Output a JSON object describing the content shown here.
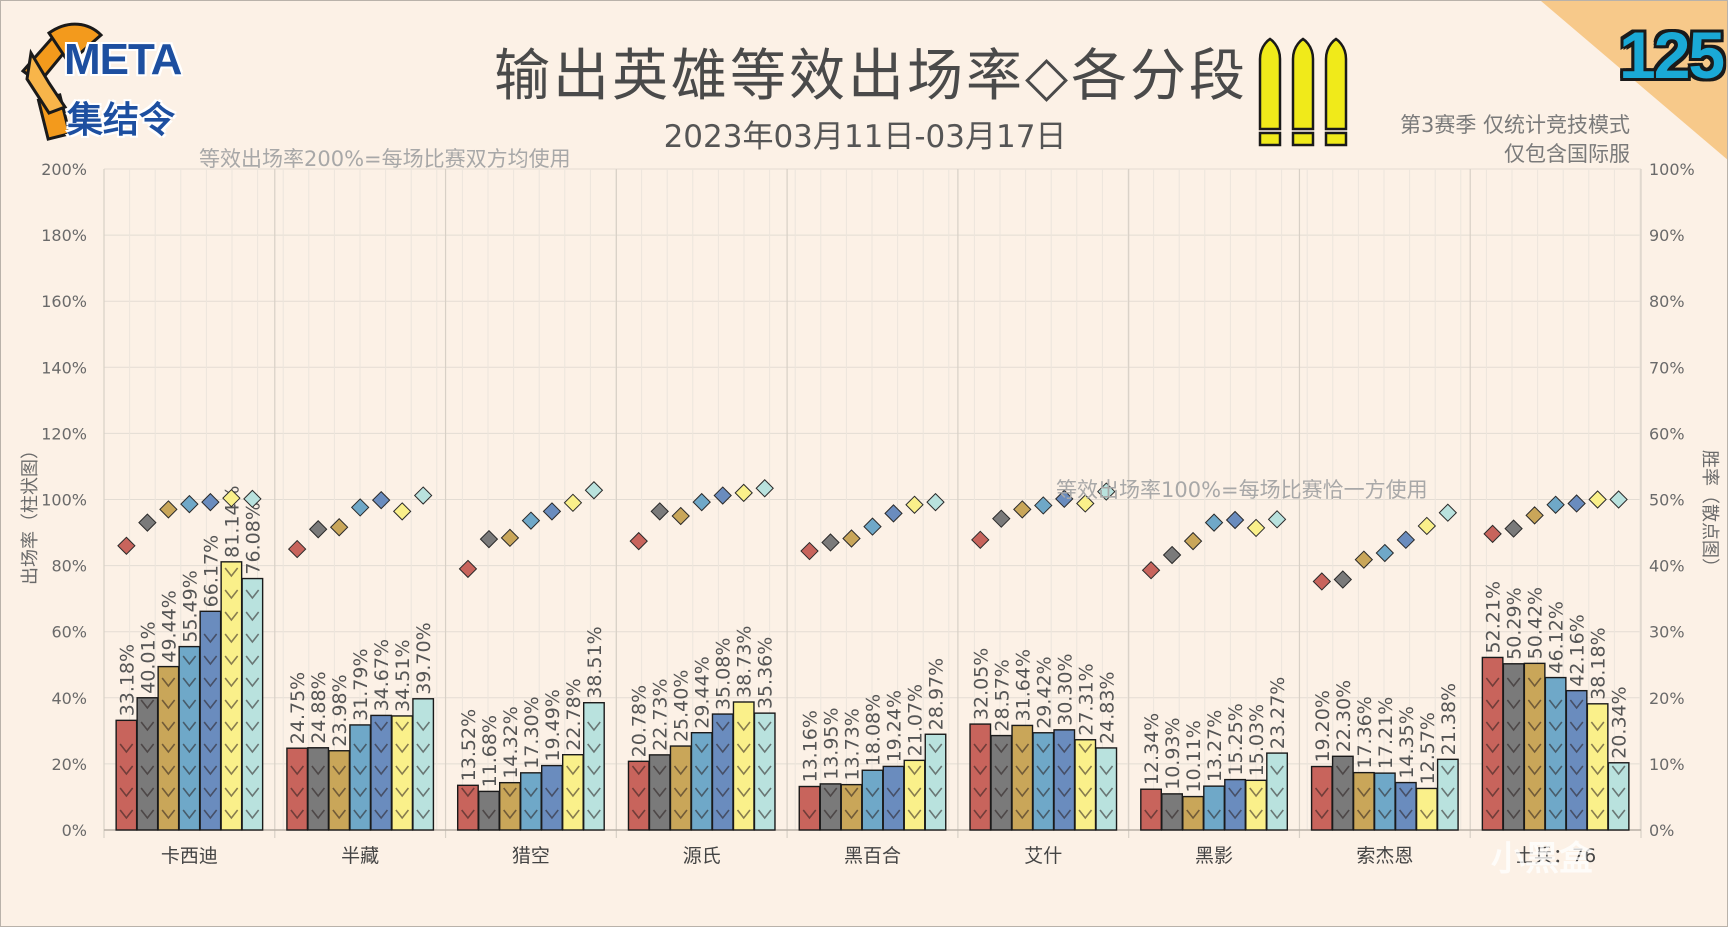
{
  "header": {
    "title": "输出英雄等效出场率◇各分段",
    "date_range": "2023年03月11日-03月17日",
    "season_note": "第3赛季 仅统计竞技模式",
    "region_note": "仅包含国际服",
    "episode": "125",
    "logo_text": "META",
    "logo_subtext": "集结令"
  },
  "notes": {
    "top": "等效出场率200%=每场比赛双方均使用",
    "mid": "等效出场率100%=每场比赛恰一方使用"
  },
  "watermark": "小黑盒",
  "colors": {
    "tiers": [
      "#c8645c",
      "#7a7a7a",
      "#c9a659",
      "#6fa8c8",
      "#6a8cbe",
      "#faf08a",
      "#b9e2de"
    ],
    "diamonds": [
      "#c8645c",
      "#7a7a7a",
      "#c9a659",
      "#6fa8c8",
      "#6a8cbe",
      "#faf08a",
      "#b9e2de"
    ],
    "bullet": "#f0ea1a",
    "corner": "#f7c98a"
  },
  "chart_data": {
    "type": "bar",
    "categories": [
      "卡西迪",
      "半藏",
      "猎空",
      "源氏",
      "黑百合",
      "艾什",
      "黑影",
      "索杰恩",
      "士兵：76"
    ],
    "y_left_label": "出场率（柱状图）",
    "y_right_label": "胜率（散点图）",
    "y_left_ticks": [
      "0%",
      "20%",
      "40%",
      "60%",
      "80%",
      "100%",
      "120%",
      "140%",
      "160%",
      "180%",
      "200%"
    ],
    "y_right_ticks": [
      "0%",
      "10%",
      "20%",
      "30%",
      "40%",
      "50%",
      "60%",
      "70%",
      "80%",
      "90%",
      "100%"
    ],
    "ylim_left": [
      0,
      200
    ],
    "ylim_right": [
      0,
      100
    ],
    "grid": true,
    "pick_rate": [
      [
        33.18,
        40.01,
        49.44,
        55.49,
        66.17,
        81.14,
        76.08
      ],
      [
        24.75,
        24.88,
        23.98,
        31.79,
        34.67,
        34.51,
        39.7
      ],
      [
        13.52,
        11.68,
        14.32,
        17.3,
        19.49,
        22.78,
        38.51
      ],
      [
        20.78,
        22.73,
        25.4,
        29.44,
        35.08,
        38.73,
        35.36
      ],
      [
        13.16,
        13.95,
        13.73,
        18.08,
        19.24,
        21.07,
        28.97
      ],
      [
        32.05,
        28.57,
        31.64,
        29.42,
        30.3,
        27.31,
        24.83
      ],
      [
        12.34,
        10.93,
        10.11,
        13.27,
        15.25,
        15.03,
        23.27
      ],
      [
        19.2,
        22.3,
        17.36,
        17.21,
        14.35,
        12.57,
        21.38
      ],
      [
        52.21,
        50.29,
        50.42,
        46.12,
        42.16,
        38.18,
        20.34
      ]
    ],
    "pick_rate_labels": [
      [
        "33.18%",
        "40.01%",
        "49.44%",
        "55.49%",
        "66.17%",
        "81.14%",
        "76.08%"
      ],
      [
        "24.75%",
        "24.88%",
        "23.98%",
        "31.79%",
        "34.67%",
        "34.51%",
        "39.70%"
      ],
      [
        "13.52%",
        "11.68%",
        "14.32%",
        "17.30%",
        "19.49%",
        "22.78%",
        "38.51%"
      ],
      [
        "20.78%",
        "22.73%",
        "25.40%",
        "29.44%",
        "35.08%",
        "38.73%",
        "35.36%"
      ],
      [
        "13.16%",
        "13.95%",
        "13.73%",
        "18.08%",
        "19.24%",
        "21.07%",
        "28.97%"
      ],
      [
        "32.05%",
        "28.57%",
        "31.64%",
        "29.42%",
        "30.30%",
        "27.31%",
        "24.83%"
      ],
      [
        "12.34%",
        "10.93%",
        "10.11%",
        "13.27%",
        "15.25%",
        "15.03%",
        "23.27%"
      ],
      [
        "19.20%",
        "22.30%",
        "17.36%",
        "17.21%",
        "14.35%",
        "12.57%",
        "21.38%"
      ],
      [
        "52.21%",
        "50.29%",
        "50.42%",
        "46.12%",
        "42.16%",
        "38.18%",
        "20.34%"
      ]
    ],
    "win_rate": [
      [
        43.0,
        46.5,
        48.5,
        49.3,
        49.6,
        50.2,
        50.1
      ],
      [
        42.5,
        45.5,
        45.8,
        48.8,
        49.9,
        48.2,
        50.6
      ],
      [
        39.5,
        44.0,
        44.2,
        46.8,
        48.2,
        49.5,
        51.4
      ],
      [
        43.7,
        48.2,
        47.5,
        49.6,
        50.6,
        51.0,
        51.7
      ],
      [
        42.2,
        43.5,
        44.1,
        45.9,
        47.9,
        49.2,
        49.6
      ],
      [
        43.9,
        47.1,
        48.5,
        49.1,
        50.1,
        49.4,
        51.2
      ],
      [
        39.3,
        41.6,
        43.7,
        46.5,
        46.9,
        45.7,
        47.0
      ],
      [
        37.6,
        37.9,
        40.9,
        41.9,
        43.9,
        46.0,
        48.0
      ],
      [
        44.8,
        45.6,
        47.6,
        49.2,
        49.4,
        50.0,
        50.0
      ]
    ]
  }
}
